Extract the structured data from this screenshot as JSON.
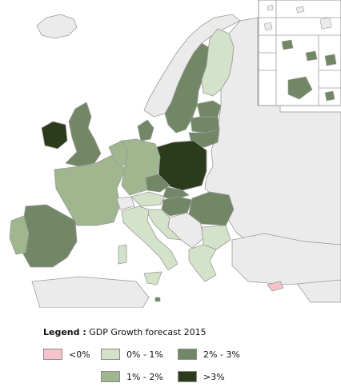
{
  "legend": {
    "heading": "Legend :",
    "title": "GDP Growth forecast 2015",
    "classes": [
      {
        "label": "<0%",
        "color": "#f7c3cb"
      },
      {
        "label": "0% - 1%",
        "color": "#d3e2c8"
      },
      {
        "label": "2% - 3%",
        "color": "#718766"
      },
      {
        "label": "1% - 2%",
        "color": "#9fb68f"
      },
      {
        "label": ">3%",
        "color": "#2c3b1c"
      }
    ]
  },
  "colors": {
    "sea": "#ffffff",
    "non_eu_land": "#ebebeb",
    "border": "#9a9a9a",
    "shadow": "#bfbfbf"
  }
}
